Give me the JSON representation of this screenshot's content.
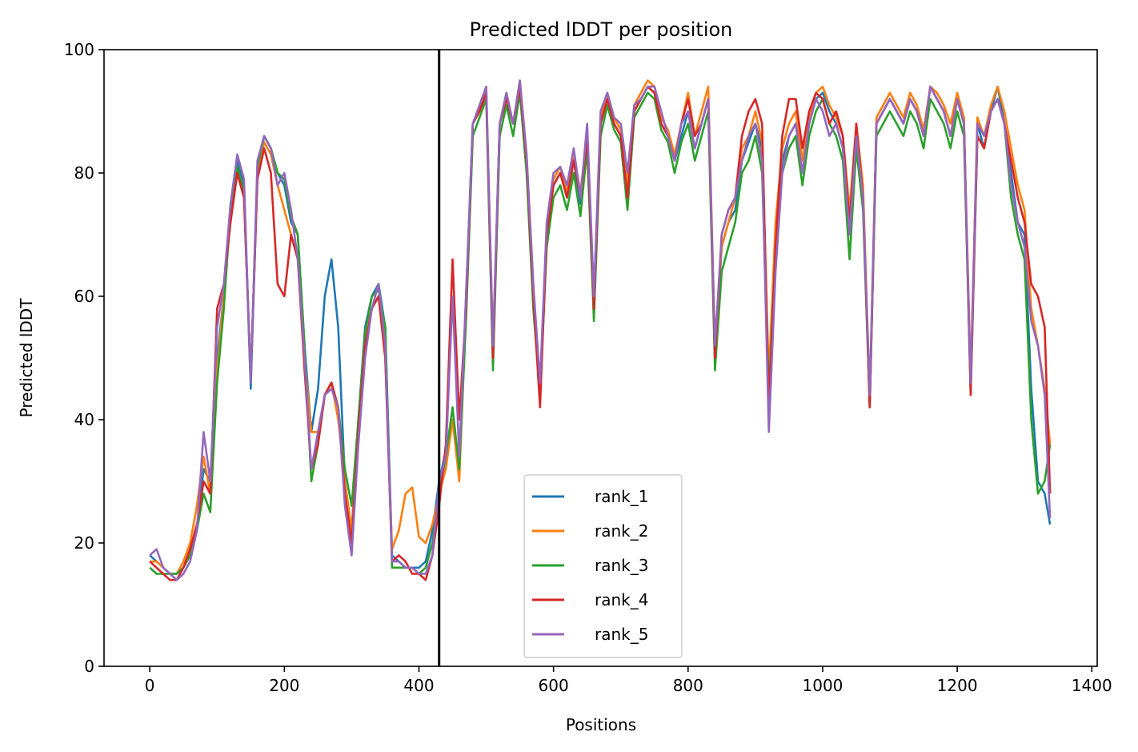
{
  "chart_data": {
    "type": "line",
    "title": "Predicted lDDT per position",
    "xlabel": "Positions",
    "ylabel": "Predicted lDDT",
    "xlim": [
      -68,
      1408
    ],
    "ylim": [
      0,
      100
    ],
    "xticks": [
      0,
      200,
      400,
      600,
      800,
      1000,
      1200,
      1400
    ],
    "xtick_labels": [
      "0",
      "200",
      "400",
      "600",
      "800",
      "1000",
      "1200",
      "1400"
    ],
    "yticks": [
      0,
      20,
      40,
      60,
      80,
      100
    ],
    "ytick_labels": [
      "0",
      "20",
      "40",
      "60",
      "80",
      "100"
    ],
    "grid": false,
    "legend_position": "lower-center",
    "vline": {
      "x": 430,
      "color": "#000000"
    },
    "x": [
      0,
      10,
      20,
      30,
      40,
      50,
      60,
      70,
      80,
      90,
      100,
      110,
      120,
      130,
      140,
      150,
      160,
      170,
      180,
      190,
      200,
      210,
      220,
      230,
      240,
      250,
      260,
      270,
      280,
      290,
      300,
      310,
      320,
      330,
      340,
      350,
      360,
      370,
      380,
      390,
      400,
      410,
      420,
      430,
      440,
      450,
      460,
      470,
      480,
      490,
      500,
      510,
      520,
      530,
      540,
      550,
      560,
      570,
      580,
      590,
      600,
      610,
      620,
      630,
      640,
      650,
      660,
      670,
      680,
      690,
      700,
      710,
      720,
      730,
      740,
      750,
      760,
      770,
      780,
      790,
      800,
      810,
      820,
      830,
      840,
      850,
      860,
      870,
      880,
      890,
      900,
      910,
      920,
      930,
      940,
      950,
      960,
      970,
      980,
      990,
      1000,
      1010,
      1020,
      1030,
      1040,
      1050,
      1060,
      1070,
      1080,
      1090,
      1100,
      1110,
      1120,
      1130,
      1140,
      1150,
      1160,
      1170,
      1180,
      1190,
      1200,
      1210,
      1220,
      1230,
      1240,
      1250,
      1260,
      1270,
      1280,
      1290,
      1300,
      1310,
      1320,
      1330,
      1338
    ],
    "series": [
      {
        "name": "rank_1",
        "color": "#1f77b4",
        "values": [
          18,
          17,
          16,
          15,
          15,
          16,
          18,
          22,
          32,
          30,
          50,
          60,
          75,
          82,
          78,
          45,
          80,
          86,
          84,
          80,
          78,
          72,
          70,
          52,
          38,
          45,
          60,
          66,
          55,
          30,
          22,
          40,
          55,
          60,
          62,
          55,
          18,
          17,
          16,
          16,
          16,
          17,
          22,
          30,
          35,
          40,
          32,
          60,
          88,
          90,
          93,
          50,
          88,
          92,
          88,
          94,
          82,
          60,
          45,
          70,
          78,
          80,
          76,
          82,
          75,
          85,
          60,
          88,
          92,
          88,
          86,
          76,
          90,
          92,
          94,
          93,
          88,
          86,
          82,
          86,
          90,
          84,
          88,
          92,
          50,
          68,
          72,
          74,
          82,
          85,
          88,
          84,
          45,
          70,
          82,
          86,
          88,
          80,
          88,
          92,
          93,
          90,
          88,
          84,
          70,
          86,
          76,
          42,
          88,
          90,
          92,
          90,
          88,
          92,
          90,
          86,
          94,
          92,
          90,
          86,
          92,
          88,
          45,
          88,
          84,
          90,
          94,
          88,
          80,
          72,
          70,
          45,
          30,
          28,
          23
        ]
      },
      {
        "name": "rank_2",
        "color": "#ff7f0e",
        "values": [
          17,
          17,
          16,
          15,
          15,
          17,
          20,
          26,
          34,
          28,
          48,
          60,
          73,
          80,
          76,
          47,
          80,
          85,
          83,
          78,
          74,
          70,
          66,
          50,
          38,
          38,
          44,
          46,
          40,
          30,
          22,
          38,
          52,
          58,
          60,
          50,
          19,
          22,
          28,
          29,
          21,
          20,
          23,
          28,
          32,
          40,
          30,
          58,
          88,
          91,
          94,
          52,
          88,
          93,
          88,
          95,
          83,
          62,
          44,
          72,
          79,
          81,
          77,
          83,
          77,
          86,
          58,
          89,
          93,
          89,
          87,
          78,
          91,
          93,
          95,
          94,
          89,
          87,
          83,
          88,
          93,
          86,
          90,
          94,
          52,
          68,
          72,
          76,
          84,
          86,
          90,
          85,
          47,
          72,
          84,
          88,
          90,
          82,
          89,
          93,
          94,
          91,
          89,
          86,
          74,
          88,
          78,
          44,
          89,
          91,
          93,
          91,
          89,
          93,
          91,
          87,
          94,
          93,
          91,
          88,
          93,
          89,
          47,
          89,
          86,
          91,
          94,
          90,
          84,
          78,
          74,
          58,
          52,
          45,
          36
        ]
      },
      {
        "name": "rank_3",
        "color": "#2ca02c",
        "values": [
          16,
          15,
          15,
          15,
          15,
          16,
          18,
          22,
          28,
          25,
          46,
          58,
          74,
          81,
          77,
          46,
          81,
          86,
          84,
          80,
          79,
          73,
          70,
          52,
          30,
          36,
          44,
          46,
          42,
          32,
          26,
          40,
          54,
          60,
          61,
          55,
          16,
          16,
          16,
          16,
          15,
          16,
          20,
          28,
          34,
          42,
          32,
          56,
          86,
          89,
          92,
          48,
          86,
          91,
          86,
          93,
          80,
          58,
          44,
          68,
          76,
          78,
          74,
          80,
          73,
          84,
          56,
          86,
          91,
          87,
          85,
          74,
          89,
          91,
          93,
          92,
          87,
          85,
          80,
          85,
          88,
          82,
          86,
          90,
          48,
          64,
          68,
          72,
          80,
          82,
          86,
          80,
          44,
          68,
          80,
          84,
          86,
          78,
          86,
          90,
          92,
          88,
          86,
          82,
          66,
          84,
          74,
          42,
          86,
          88,
          90,
          88,
          86,
          90,
          88,
          84,
          92,
          90,
          88,
          84,
          90,
          86,
          44,
          86,
          84,
          90,
          92,
          88,
          76,
          70,
          66,
          40,
          28,
          30,
          36
        ]
      },
      {
        "name": "rank_4",
        "color": "#d62728",
        "values": [
          17,
          16,
          15,
          14,
          14,
          16,
          19,
          23,
          30,
          28,
          58,
          62,
          72,
          80,
          76,
          47,
          79,
          84,
          80,
          62,
          60,
          70,
          66,
          48,
          32,
          36,
          44,
          46,
          42,
          28,
          20,
          38,
          52,
          58,
          60,
          50,
          17,
          18,
          17,
          15,
          15,
          14,
          18,
          26,
          36,
          66,
          40,
          58,
          88,
          90,
          93,
          50,
          88,
          92,
          88,
          94,
          82,
          60,
          42,
          70,
          78,
          80,
          76,
          82,
          76,
          86,
          58,
          88,
          92,
          88,
          86,
          76,
          90,
          92,
          94,
          93,
          88,
          86,
          82,
          88,
          92,
          86,
          88,
          92,
          50,
          70,
          74,
          76,
          86,
          90,
          92,
          88,
          42,
          68,
          86,
          92,
          92,
          84,
          90,
          93,
          92,
          88,
          90,
          86,
          72,
          88,
          76,
          42,
          88,
          90,
          92,
          90,
          88,
          92,
          90,
          86,
          94,
          92,
          90,
          86,
          92,
          88,
          44,
          86,
          84,
          90,
          92,
          88,
          82,
          76,
          72,
          62,
          60,
          55,
          28
        ]
      },
      {
        "name": "rank_5",
        "color": "#9467bd",
        "values": [
          18,
          19,
          16,
          15,
          14,
          15,
          17,
          22,
          38,
          30,
          55,
          62,
          75,
          83,
          79,
          46,
          82,
          86,
          84,
          78,
          80,
          74,
          66,
          50,
          32,
          38,
          44,
          45,
          42,
          26,
          18,
          36,
          50,
          58,
          62,
          52,
          17,
          17,
          16,
          16,
          15,
          15,
          18,
          30,
          34,
          60,
          34,
          60,
          88,
          91,
          94,
          52,
          88,
          93,
          88,
          95,
          83,
          62,
          46,
          72,
          80,
          81,
          78,
          84,
          76,
          88,
          60,
          90,
          93,
          89,
          88,
          80,
          91,
          92,
          94,
          94,
          90,
          86,
          82,
          88,
          90,
          84,
          88,
          92,
          52,
          70,
          74,
          76,
          82,
          86,
          88,
          82,
          38,
          64,
          80,
          86,
          88,
          80,
          88,
          92,
          90,
          86,
          88,
          84,
          70,
          86,
          76,
          44,
          88,
          90,
          92,
          90,
          88,
          92,
          90,
          86,
          94,
          92,
          90,
          86,
          92,
          88,
          46,
          88,
          86,
          90,
          92,
          88,
          78,
          72,
          68,
          56,
          52,
          44,
          24
        ]
      }
    ]
  }
}
